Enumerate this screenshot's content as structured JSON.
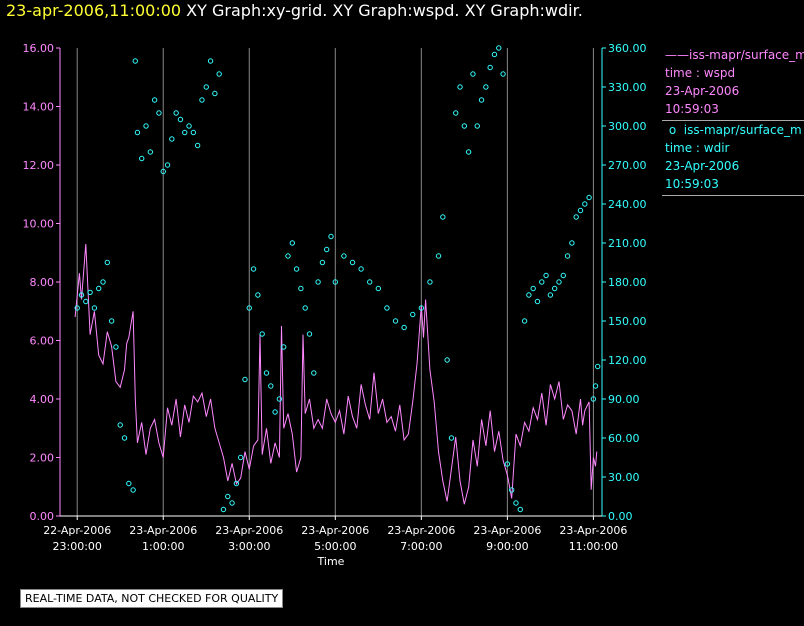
{
  "header": {
    "date": "23-apr-2006,11:00:00",
    "graphs": " XY Graph:xy-grid.  XY Graph:wspd.  XY Graph:wdir."
  },
  "legend": [
    {
      "label": "iss-mapr/surface_m",
      "var": "time : wspd",
      "date": "23-Apr-2006",
      "time": "10:59:03",
      "color": "#ff88ff"
    },
    {
      "label": "iss-mapr/surface_m",
      "var": "time : wdir",
      "date": "23-Apr-2006",
      "time": "10:59:03",
      "color": "#33ffff"
    }
  ],
  "notice": "REAL-TIME DATA, NOT CHECKED FOR QUALITY",
  "chart_data": {
    "type": "line+scatter",
    "xlabel": "Time",
    "x_range_hours": [
      -0.4,
      12.2
    ],
    "x_ticks": [
      {
        "t": 0,
        "date": "22-Apr-2006",
        "time": "23:00:00"
      },
      {
        "t": 2,
        "date": "23-Apr-2006",
        "time": "1:00:00"
      },
      {
        "t": 4,
        "date": "23-Apr-2006",
        "time": "3:00:00"
      },
      {
        "t": 6,
        "date": "23-Apr-2006",
        "time": "5:00:00"
      },
      {
        "t": 8,
        "date": "23-Apr-2006",
        "time": "7:00:00"
      },
      {
        "t": 10,
        "date": "23-Apr-2006",
        "time": "9:00:00"
      },
      {
        "t": 12,
        "date": "23-Apr-2006",
        "time": "11:00:00"
      }
    ],
    "left_axis": {
      "name": "wspd",
      "ylim": [
        0,
        16
      ],
      "ticks": [
        "0.00",
        "2.00",
        "4.00",
        "6.00",
        "8.00",
        "10.00",
        "12.00",
        "14.00",
        "16.00"
      ]
    },
    "right_axis": {
      "name": "wdir",
      "ylim": [
        0,
        360
      ],
      "ticks": [
        "0.00",
        "30.00",
        "60.00",
        "90.00",
        "120.00",
        "150.00",
        "180.00",
        "210.00",
        "240.00",
        "270.00",
        "300.00",
        "330.00",
        "360.00"
      ]
    },
    "series": [
      {
        "name": "wspd",
        "style": "line",
        "axis": "left",
        "color": "#ff88ff",
        "points": [
          [
            -0.05,
            6.8
          ],
          [
            0.05,
            8.3
          ],
          [
            0.1,
            7.4
          ],
          [
            0.2,
            9.3
          ],
          [
            0.3,
            6.2
          ],
          [
            0.4,
            7.0
          ],
          [
            0.5,
            5.5
          ],
          [
            0.6,
            5.2
          ],
          [
            0.7,
            6.3
          ],
          [
            0.8,
            5.8
          ],
          [
            0.9,
            4.6
          ],
          [
            1.0,
            4.4
          ],
          [
            1.1,
            5.0
          ],
          [
            1.15,
            5.9
          ],
          [
            1.2,
            6.1
          ],
          [
            1.3,
            7.0
          ],
          [
            1.35,
            4.0
          ],
          [
            1.4,
            2.5
          ],
          [
            1.5,
            3.2
          ],
          [
            1.6,
            2.1
          ],
          [
            1.7,
            3.0
          ],
          [
            1.8,
            3.3
          ],
          [
            1.9,
            2.5
          ],
          [
            2.0,
            2.0
          ],
          [
            2.1,
            3.7
          ],
          [
            2.2,
            3.1
          ],
          [
            2.3,
            4.0
          ],
          [
            2.4,
            2.7
          ],
          [
            2.5,
            3.8
          ],
          [
            2.6,
            3.2
          ],
          [
            2.7,
            4.1
          ],
          [
            2.8,
            3.9
          ],
          [
            2.9,
            4.2
          ],
          [
            3.0,
            3.4
          ],
          [
            3.1,
            4.0
          ],
          [
            3.2,
            3.0
          ],
          [
            3.3,
            2.5
          ],
          [
            3.4,
            2.0
          ],
          [
            3.5,
            1.2
          ],
          [
            3.6,
            1.8
          ],
          [
            3.7,
            1.1
          ],
          [
            3.8,
            1.3
          ],
          [
            3.9,
            2.2
          ],
          [
            4.0,
            1.6
          ],
          [
            4.1,
            2.4
          ],
          [
            4.2,
            2.6
          ],
          [
            4.25,
            6.2
          ],
          [
            4.3,
            2.1
          ],
          [
            4.4,
            3.0
          ],
          [
            4.5,
            1.8
          ],
          [
            4.6,
            2.5
          ],
          [
            4.7,
            2.0
          ],
          [
            4.75,
            6.5
          ],
          [
            4.8,
            3.0
          ],
          [
            4.9,
            3.5
          ],
          [
            5.0,
            2.8
          ],
          [
            5.1,
            1.5
          ],
          [
            5.2,
            2.0
          ],
          [
            5.25,
            6.2
          ],
          [
            5.3,
            3.5
          ],
          [
            5.4,
            4.0
          ],
          [
            5.5,
            3.0
          ],
          [
            5.6,
            3.3
          ],
          [
            5.7,
            3.0
          ],
          [
            5.8,
            4.0
          ],
          [
            5.9,
            3.5
          ],
          [
            6.0,
            3.2
          ],
          [
            6.1,
            3.6
          ],
          [
            6.2,
            2.8
          ],
          [
            6.3,
            4.1
          ],
          [
            6.4,
            3.4
          ],
          [
            6.5,
            3.0
          ],
          [
            6.6,
            4.5
          ],
          [
            6.7,
            3.8
          ],
          [
            6.8,
            3.3
          ],
          [
            6.9,
            4.9
          ],
          [
            7.0,
            3.5
          ],
          [
            7.1,
            4.0
          ],
          [
            7.2,
            3.2
          ],
          [
            7.3,
            3.4
          ],
          [
            7.4,
            2.9
          ],
          [
            7.5,
            3.8
          ],
          [
            7.6,
            2.6
          ],
          [
            7.7,
            2.8
          ],
          [
            7.8,
            3.9
          ],
          [
            7.9,
            5.2
          ],
          [
            8.0,
            7.2
          ],
          [
            8.05,
            6.1
          ],
          [
            8.1,
            7.4
          ],
          [
            8.2,
            5.0
          ],
          [
            8.3,
            3.9
          ],
          [
            8.4,
            2.2
          ],
          [
            8.5,
            1.2
          ],
          [
            8.6,
            0.5
          ],
          [
            8.7,
            1.6
          ],
          [
            8.8,
            2.7
          ],
          [
            8.9,
            1.2
          ],
          [
            9.0,
            0.4
          ],
          [
            9.1,
            1.0
          ],
          [
            9.2,
            2.6
          ],
          [
            9.3,
            1.7
          ],
          [
            9.4,
            3.3
          ],
          [
            9.5,
            2.4
          ],
          [
            9.6,
            3.6
          ],
          [
            9.7,
            2.2
          ],
          [
            9.8,
            2.9
          ],
          [
            9.9,
            1.9
          ],
          [
            10.0,
            1.4
          ],
          [
            10.1,
            0.6
          ],
          [
            10.15,
            1.7
          ],
          [
            10.2,
            2.8
          ],
          [
            10.3,
            2.4
          ],
          [
            10.4,
            3.2
          ],
          [
            10.5,
            2.9
          ],
          [
            10.6,
            3.7
          ],
          [
            10.7,
            3.3
          ],
          [
            10.8,
            4.2
          ],
          [
            10.9,
            3.1
          ],
          [
            11.0,
            4.5
          ],
          [
            11.1,
            4.0
          ],
          [
            11.2,
            4.6
          ],
          [
            11.3,
            3.3
          ],
          [
            11.4,
            3.8
          ],
          [
            11.5,
            3.6
          ],
          [
            11.6,
            2.8
          ],
          [
            11.7,
            4.0
          ],
          [
            11.75,
            3.1
          ],
          [
            11.8,
            3.6
          ],
          [
            11.9,
            3.9
          ],
          [
            11.95,
            0.9
          ],
          [
            12.0,
            2.0
          ],
          [
            12.05,
            1.7
          ],
          [
            12.08,
            2.2
          ]
        ]
      },
      {
        "name": "wdir",
        "style": "scatter",
        "axis": "right",
        "color": "#33ffff",
        "points": [
          [
            0.0,
            160
          ],
          [
            0.1,
            170
          ],
          [
            0.2,
            165
          ],
          [
            0.3,
            172
          ],
          [
            0.4,
            160
          ],
          [
            0.5,
            175
          ],
          [
            0.6,
            180
          ],
          [
            0.7,
            195
          ],
          [
            0.8,
            150
          ],
          [
            0.9,
            130
          ],
          [
            1.0,
            70
          ],
          [
            1.1,
            60
          ],
          [
            1.2,
            25
          ],
          [
            1.3,
            20
          ],
          [
            1.35,
            350
          ],
          [
            1.4,
            295
          ],
          [
            1.5,
            275
          ],
          [
            1.6,
            300
          ],
          [
            1.7,
            280
          ],
          [
            1.8,
            320
          ],
          [
            1.9,
            310
          ],
          [
            2.0,
            265
          ],
          [
            2.1,
            270
          ],
          [
            2.2,
            290
          ],
          [
            2.3,
            310
          ],
          [
            2.4,
            305
          ],
          [
            2.5,
            295
          ],
          [
            2.6,
            300
          ],
          [
            2.7,
            295
          ],
          [
            2.8,
            285
          ],
          [
            2.9,
            320
          ],
          [
            3.0,
            330
          ],
          [
            3.1,
            350
          ],
          [
            3.2,
            325
          ],
          [
            3.3,
            340
          ],
          [
            3.4,
            5
          ],
          [
            3.5,
            15
          ],
          [
            3.6,
            10
          ],
          [
            3.7,
            25
          ],
          [
            3.8,
            45
          ],
          [
            3.9,
            105
          ],
          [
            4.0,
            160
          ],
          [
            4.1,
            190
          ],
          [
            4.2,
            170
          ],
          [
            4.3,
            140
          ],
          [
            4.4,
            110
          ],
          [
            4.5,
            100
          ],
          [
            4.6,
            80
          ],
          [
            4.7,
            90
          ],
          [
            4.8,
            130
          ],
          [
            4.9,
            200
          ],
          [
            5.0,
            210
          ],
          [
            5.1,
            190
          ],
          [
            5.2,
            175
          ],
          [
            5.3,
            160
          ],
          [
            5.4,
            140
          ],
          [
            5.5,
            110
          ],
          [
            5.6,
            180
          ],
          [
            5.7,
            195
          ],
          [
            5.8,
            205
          ],
          [
            5.9,
            215
          ],
          [
            6.0,
            180
          ],
          [
            6.2,
            200
          ],
          [
            6.4,
            195
          ],
          [
            6.6,
            190
          ],
          [
            6.8,
            180
          ],
          [
            7.0,
            175
          ],
          [
            7.2,
            160
          ],
          [
            7.4,
            150
          ],
          [
            7.6,
            145
          ],
          [
            7.8,
            155
          ],
          [
            8.0,
            160
          ],
          [
            8.2,
            180
          ],
          [
            8.4,
            200
          ],
          [
            8.5,
            230
          ],
          [
            8.6,
            120
          ],
          [
            8.7,
            60
          ],
          [
            8.8,
            310
          ],
          [
            8.9,
            330
          ],
          [
            9.0,
            300
          ],
          [
            9.1,
            280
          ],
          [
            9.2,
            340
          ],
          [
            9.3,
            300
          ],
          [
            9.4,
            320
          ],
          [
            9.5,
            330
          ],
          [
            9.6,
            345
          ],
          [
            9.7,
            355
          ],
          [
            9.8,
            360
          ],
          [
            9.9,
            340
          ],
          [
            10.0,
            40
          ],
          [
            10.1,
            20
          ],
          [
            10.2,
            10
          ],
          [
            10.3,
            5
          ],
          [
            10.4,
            150
          ],
          [
            10.5,
            170
          ],
          [
            10.6,
            175
          ],
          [
            10.7,
            165
          ],
          [
            10.8,
            180
          ],
          [
            10.9,
            185
          ],
          [
            11.0,
            170
          ],
          [
            11.1,
            175
          ],
          [
            11.2,
            180
          ],
          [
            11.3,
            185
          ],
          [
            11.4,
            200
          ],
          [
            11.5,
            210
          ],
          [
            11.6,
            230
          ],
          [
            11.7,
            235
          ],
          [
            11.8,
            240
          ],
          [
            11.9,
            245
          ],
          [
            12.0,
            90
          ],
          [
            12.05,
            100
          ],
          [
            12.1,
            115
          ]
        ]
      }
    ]
  }
}
